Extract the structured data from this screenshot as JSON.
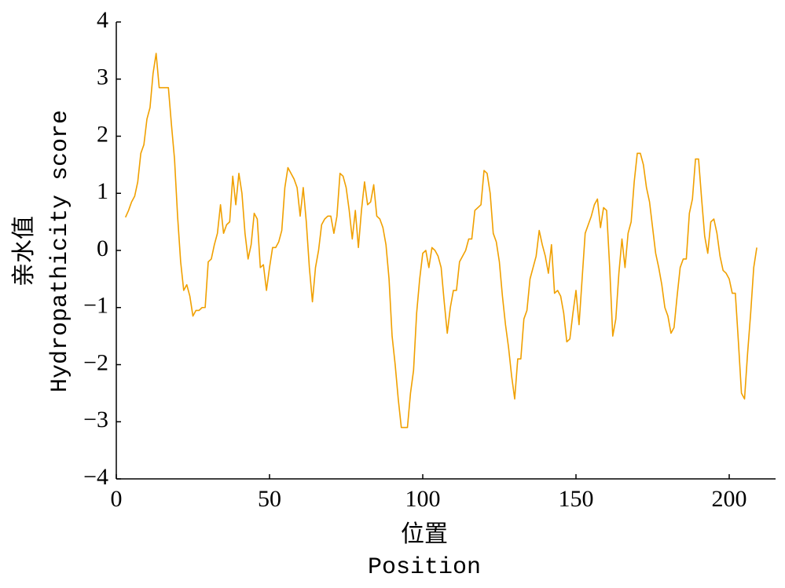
{
  "chart_data": {
    "type": "line",
    "xlabel": [
      "位置",
      "Position"
    ],
    "ylabel": [
      "亲水值",
      "Hydropathicity score"
    ],
    "color": "#f0a000",
    "xlim": [
      0,
      215
    ],
    "xticks": [
      0,
      50,
      100,
      150,
      200
    ],
    "ylim": [
      -4,
      4
    ],
    "yticks": [
      {
        "value": -4,
        "label": "−4"
      },
      {
        "value": -3,
        "label": "−3"
      },
      {
        "value": -2,
        "label": "−2"
      },
      {
        "value": -1,
        "label": "−1"
      },
      0,
      1,
      2,
      3,
      4
    ],
    "grid": false,
    "x": [
      3,
      4,
      5,
      6,
      7,
      8,
      9,
      10,
      11,
      12,
      13,
      14,
      15,
      16,
      17,
      18,
      19,
      20,
      21,
      22,
      23,
      24,
      25,
      26,
      27,
      28,
      29,
      30,
      31,
      32,
      33,
      34,
      35,
      36,
      37,
      38,
      39,
      40,
      41,
      42,
      43,
      44,
      45,
      46,
      47,
      48,
      49,
      50,
      51,
      52,
      53,
      54,
      55,
      56,
      57,
      58,
      59,
      60,
      61,
      62,
      63,
      64,
      65,
      66,
      67,
      68,
      69,
      70,
      71,
      72,
      73,
      74,
      75,
      76,
      77,
      78,
      79,
      80,
      81,
      82,
      83,
      84,
      85,
      86,
      87,
      88,
      89,
      90,
      91,
      92,
      93,
      94,
      95,
      96,
      97,
      98,
      99,
      100,
      101,
      102,
      103,
      104,
      105,
      106,
      107,
      108,
      109,
      110,
      111,
      112,
      113,
      114,
      115,
      116,
      117,
      118,
      119,
      120,
      121,
      122,
      123,
      124,
      125,
      126,
      127,
      128,
      129,
      130,
      131,
      132,
      133,
      134,
      135,
      136,
      137,
      138,
      139,
      140,
      141,
      142,
      143,
      144,
      145,
      146,
      147,
      148,
      149,
      150,
      151,
      152,
      153,
      154,
      155,
      156,
      157,
      158,
      159,
      160,
      161,
      162,
      163,
      164,
      165,
      166,
      167,
      168,
      169,
      170,
      171,
      172,
      173,
      174,
      175,
      176,
      177,
      178,
      179,
      180,
      181,
      182,
      183,
      184,
      185,
      186,
      187,
      188,
      189,
      190,
      191,
      192,
      193,
      194,
      195,
      196,
      197,
      198,
      199,
      200,
      201,
      202,
      203,
      204,
      205,
      206,
      207,
      208,
      209
    ],
    "values": [
      0.58,
      0.7,
      0.85,
      0.95,
      1.2,
      1.7,
      1.85,
      2.3,
      2.5,
      3.1,
      3.45,
      2.85,
      2.85,
      2.85,
      2.85,
      2.2,
      1.6,
      0.6,
      -0.2,
      -0.7,
      -0.6,
      -0.8,
      -1.15,
      -1.05,
      -1.05,
      -1.0,
      -1.0,
      -0.2,
      -0.15,
      0.1,
      0.3,
      0.8,
      0.3,
      0.45,
      0.5,
      1.3,
      0.8,
      1.35,
      1.0,
      0.3,
      -0.15,
      0.1,
      0.65,
      0.55,
      -0.3,
      -0.25,
      -0.7,
      -0.3,
      0.05,
      0.05,
      0.15,
      0.35,
      1.1,
      1.45,
      1.35,
      1.25,
      1.1,
      0.6,
      1.1,
      0.5,
      -0.3,
      -0.9,
      -0.3,
      0.0,
      0.45,
      0.55,
      0.6,
      0.6,
      0.3,
      0.6,
      1.35,
      1.3,
      1.1,
      0.7,
      0.2,
      0.7,
      0.05,
      0.7,
      1.2,
      0.8,
      0.85,
      1.15,
      0.6,
      0.55,
      0.4,
      0.1,
      -0.5,
      -1.5,
      -2.0,
      -2.6,
      -3.1,
      -3.1,
      -3.1,
      -2.5,
      -2.1,
      -1.1,
      -0.5,
      -0.05,
      0.0,
      -0.3,
      0.05,
      0.0,
      -0.1,
      -0.3,
      -0.9,
      -1.45,
      -1.0,
      -0.7,
      -0.7,
      -0.2,
      -0.1,
      0.0,
      0.2,
      0.2,
      0.7,
      0.75,
      0.8,
      1.4,
      1.35,
      1.0,
      0.3,
      0.15,
      -0.2,
      -0.8,
      -1.3,
      -1.7,
      -2.2,
      -2.6,
      -1.9,
      -1.9,
      -1.2,
      -1.05,
      -0.5,
      -0.3,
      -0.1,
      0.35,
      0.1,
      -0.1,
      -0.4,
      0.1,
      -0.75,
      -0.7,
      -0.8,
      -1.1,
      -1.6,
      -1.55,
      -1.1,
      -0.7,
      -1.3,
      -0.5,
      0.3,
      0.45,
      0.6,
      0.8,
      0.9,
      0.4,
      0.75,
      0.7,
      -0.3,
      -1.5,
      -1.2,
      -0.4,
      0.2,
      -0.3,
      0.3,
      0.5,
      1.2,
      1.7,
      1.7,
      1.5,
      1.1,
      0.85,
      0.4,
      -0.05,
      -0.3,
      -0.6,
      -1.0,
      -1.15,
      -1.45,
      -1.35,
      -0.8,
      -0.3,
      -0.15,
      -0.15,
      0.65,
      0.9,
      1.6,
      1.6,
      0.9,
      0.25,
      -0.05,
      0.5,
      0.55,
      0.3,
      -0.1,
      -0.35,
      -0.4,
      -0.5,
      -0.75,
      -0.75,
      -1.6,
      -2.5,
      -2.6,
      -1.8,
      -1.1,
      -0.3,
      0.05
    ]
  }
}
